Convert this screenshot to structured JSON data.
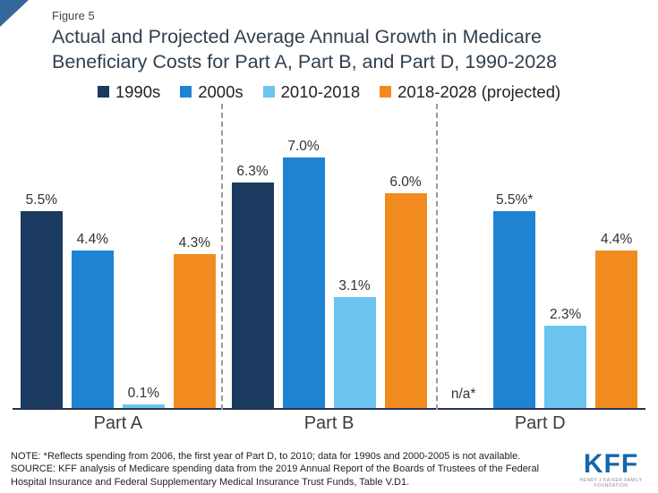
{
  "header": {
    "figure_label": "Figure 5",
    "title": "Actual and Projected Average Annual Growth in Medicare Beneficiary Costs for Part A, Part B, and Part D, 1990-2028"
  },
  "legend": [
    {
      "label": "1990s",
      "color": "#1a3a5f"
    },
    {
      "label": "2000s",
      "color": "#1f83d4"
    },
    {
      "label": "2010-2018",
      "color": "#6cc4f0"
    },
    {
      "label": "2018-2028 (projected)",
      "color": "#f28b1f"
    }
  ],
  "chart_data": {
    "type": "bar",
    "title": "Actual and Projected Average Annual Growth in Medicare Beneficiary Costs for Part A, Part B, and Part D, 1990-2028",
    "categories": [
      "Part A",
      "Part B",
      "Part D"
    ],
    "series": [
      {
        "name": "1990s",
        "color": "#1a3a5f",
        "values": [
          5.5,
          6.3,
          null
        ],
        "labels": [
          "5.5%",
          "6.3%",
          "n/a*"
        ]
      },
      {
        "name": "2000s",
        "color": "#1f83d4",
        "values": [
          4.4,
          7.0,
          5.5
        ],
        "labels": [
          "4.4%",
          "7.0%",
          "5.5%*"
        ]
      },
      {
        "name": "2010-2018",
        "color": "#6cc4f0",
        "values": [
          0.1,
          3.1,
          2.3
        ],
        "labels": [
          "0.1%",
          "3.1%",
          "2.3%"
        ]
      },
      {
        "name": "2018-2028 (projected)",
        "color": "#f28b1f",
        "values": [
          4.3,
          6.0,
          4.4
        ],
        "labels": [
          "4.3%",
          "6.0%",
          "4.4%"
        ]
      }
    ],
    "value_suffix": "%",
    "ylim": [
      0,
      7.5
    ],
    "grid": false,
    "legend_position": "top",
    "xlabel": "",
    "ylabel": ""
  },
  "footnote": {
    "note": "NOTE: *Reflects spending from 2006, the first year of Part D, to 2010; data for 1990s and 2000-2005 is not available.",
    "source": "SOURCE: KFF analysis of Medicare spending data from the 2019 Annual Report of the Boards of Trustees of the Federal Hospital Insurance  and Federal Supplementary Medical Insurance  Trust Funds, Table V.D1."
  },
  "logo": {
    "text": "KFF",
    "caption": "HENRY J KAISER FAMILY FOUNDATION",
    "color": "#1566ad"
  }
}
